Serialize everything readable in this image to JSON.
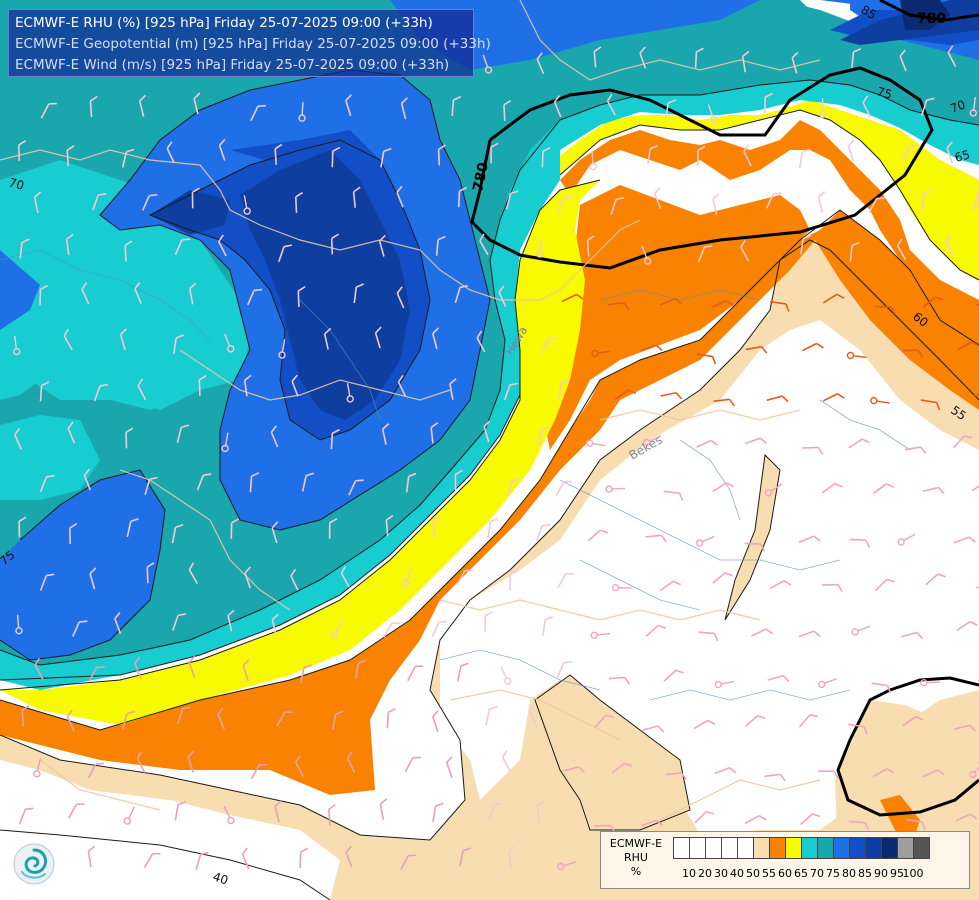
{
  "header": {
    "line1": "ECMWF-E RHU (%) [925 hPa] Friday 25-07-2025 09:00 (+33h)",
    "line2": "ECMWF-E Geopotential (m) [925 hPa] Friday 25-07-2025 09:00 (+33h)",
    "line3": "ECMWF-E Wind (m/s) [925 hPa] Friday 25-07-2025 09:00 (+33h)",
    "line1_color": "#ffffff",
    "line2_color": "#d8dcf5",
    "line3_color": "#d8dcf5"
  },
  "contour_labels": [
    {
      "text": "780",
      "kind": "geopotential"
    },
    {
      "text": "780",
      "kind": "geopotential"
    },
    {
      "text": "85",
      "kind": "rhu"
    },
    {
      "text": "75",
      "kind": "rhu"
    },
    {
      "text": "70",
      "kind": "rhu"
    },
    {
      "text": "65",
      "kind": "rhu"
    },
    {
      "text": "70",
      "kind": "rhu"
    },
    {
      "text": "60",
      "kind": "rhu"
    },
    {
      "text": "55",
      "kind": "rhu"
    },
    {
      "text": "75",
      "kind": "rhu"
    },
    {
      "text": "40",
      "kind": "rhu"
    }
  ],
  "place_labels": [
    "Bekes",
    "Hewa"
  ],
  "legend": {
    "title_line1": "ECMWF-E",
    "title_line2": "RHU",
    "title_line3": "%",
    "colors": [
      "#ffffff",
      "#ffffff",
      "#ffffff",
      "#ffffff",
      "#ffffff",
      "#f8ddb0",
      "#f98200",
      "#f8fa00",
      "#17cdd0",
      "#1aa6ad",
      "#1f6fe6",
      "#124fc7",
      "#0d3ea0",
      "#0b2a70",
      "#9e9e9e",
      "#555555"
    ],
    "ticks": [
      "10",
      "20",
      "30",
      "40",
      "50",
      "55",
      "60",
      "65",
      "70",
      "75",
      "80",
      "85",
      "90",
      "95",
      "100"
    ]
  },
  "colors": {
    "rhu_40_55": "#f8ddb0",
    "rhu_55_60": "#f98200",
    "rhu_60_65": "#f8fa00",
    "rhu_65_70": "#17cdd0",
    "rhu_70_75": "#1aa6ad",
    "rhu_75_80": "#1f6fe6",
    "rhu_80_85": "#124fc7",
    "rhu_85_90": "#0d3ea0",
    "rhu_90_95": "#0b2a70"
  },
  "logo_icon": "ecmwf-swirl-logo"
}
